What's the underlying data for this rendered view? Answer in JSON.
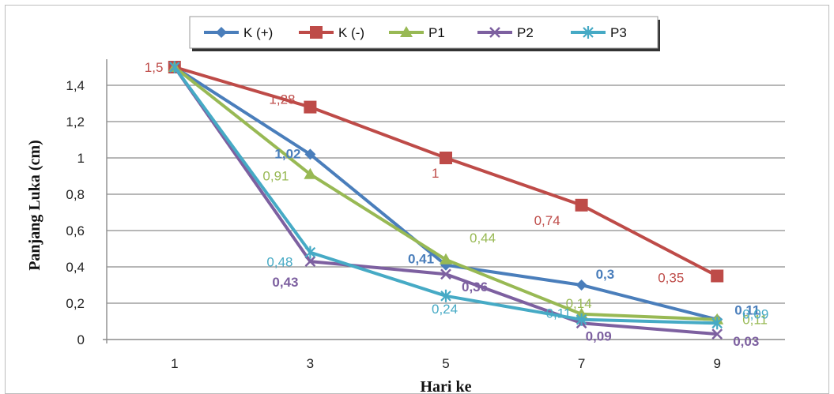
{
  "chart_data": {
    "type": "line",
    "xlabel": "Hari ke",
    "ylabel": "Panjang Luka (cm)",
    "categories": [
      "1",
      "3",
      "5",
      "7",
      "9"
    ],
    "y_ticks": [
      "0",
      "0,2",
      "0,4",
      "0,6",
      "0,8",
      "1",
      "1,2",
      "1,4"
    ],
    "ylim": [
      0,
      1.5
    ],
    "grid": true,
    "legend_position": "top",
    "series": [
      {
        "name": "K (+)",
        "color": "#4a7ebb",
        "marker": "diamond",
        "values": [
          1.5,
          1.02,
          0.41,
          0.3,
          0.11
        ],
        "labels": [
          "",
          "1,02",
          "0,41",
          "0,3",
          "0,11"
        ]
      },
      {
        "name": "K (-)",
        "color": "#be4b48",
        "marker": "square",
        "values": [
          1.5,
          1.28,
          1.0,
          0.74,
          0.35
        ],
        "labels": [
          "1,5",
          "1,28",
          "1",
          "0,74",
          "0,35"
        ]
      },
      {
        "name": "P1",
        "color": "#98b954",
        "marker": "triangle",
        "values": [
          1.5,
          0.91,
          0.44,
          0.14,
          0.11
        ],
        "labels": [
          "",
          "0,91",
          "0,44",
          "0,14",
          "0,11"
        ]
      },
      {
        "name": "P2",
        "color": "#7d60a0",
        "marker": "x",
        "values": [
          1.5,
          0.43,
          0.36,
          0.09,
          0.03
        ],
        "labels": [
          "",
          "0,43",
          "0,36",
          "0,09",
          "0,03"
        ]
      },
      {
        "name": "P3",
        "color": "#46aac5",
        "marker": "star",
        "values": [
          1.5,
          0.48,
          0.24,
          0.11,
          0.09
        ],
        "labels": [
          "",
          "0,48",
          "0,24",
          "0,11",
          "0,09"
        ]
      }
    ]
  }
}
